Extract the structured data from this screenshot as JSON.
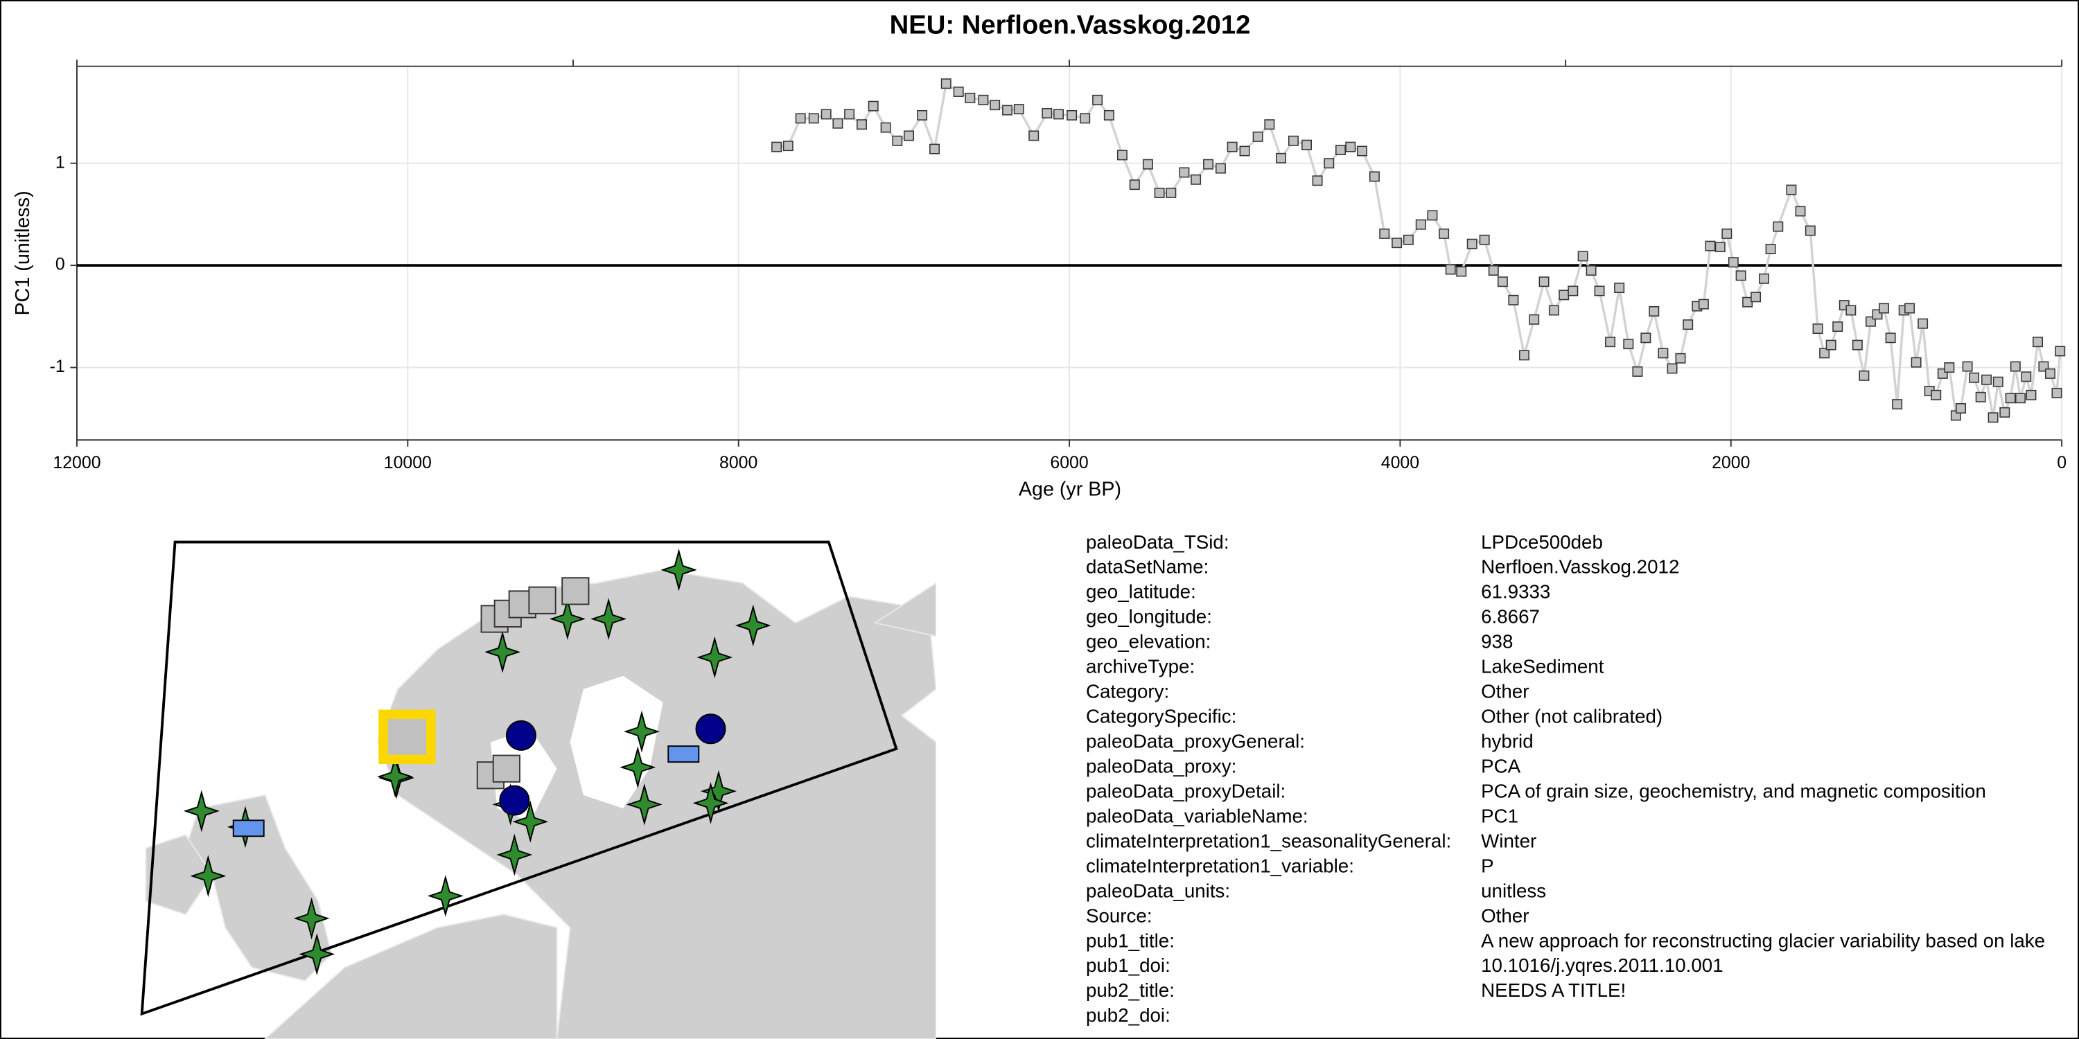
{
  "chart_data": {
    "type": "line",
    "title": "NEU: Nerfloen.Vasskog.2012",
    "x_label": "Age (yr BP)",
    "y_label": "PC1 (unitless)",
    "x": [
      7770,
      7700,
      7625,
      7545,
      7470,
      7400,
      7330,
      7255,
      7185,
      7110,
      7040,
      6970,
      6890,
      6815,
      6745,
      6670,
      6600,
      6520,
      6450,
      6375,
      6305,
      6215,
      6135,
      6065,
      5985,
      5905,
      5830,
      5760,
      5680,
      5605,
      5525,
      5455,
      5385,
      5305,
      5235,
      5160,
      5085,
      5015,
      4940,
      4860,
      4790,
      4720,
      4645,
      4565,
      4500,
      4430,
      4360,
      4300,
      4230,
      4155,
      4095,
      4020,
      3950,
      3875,
      3805,
      3735,
      3695,
      3630,
      3565,
      3490,
      3435,
      3380,
      3315,
      3250,
      3190,
      3130,
      3070,
      3010,
      2955,
      2895,
      2845,
      2795,
      2730,
      2675,
      2620,
      2565,
      2515,
      2465,
      2410,
      2355,
      2305,
      2260,
      2205,
      2165,
      2125,
      2065,
      2025,
      1985,
      1940,
      1900,
      1850,
      1800,
      1760,
      1715,
      1635,
      1580,
      1520,
      1475,
      1435,
      1395,
      1355,
      1315,
      1275,
      1235,
      1195,
      1155,
      1115,
      1075,
      1035,
      995,
      955,
      920,
      880,
      840,
      800,
      760,
      720,
      680,
      640,
      610,
      570,
      530,
      490,
      455,
      415,
      385,
      345,
      310,
      280,
      250,
      215,
      185,
      145,
      110,
      70,
      30,
      10
    ],
    "values": [
      1.16,
      1.17,
      1.44,
      1.44,
      1.48,
      1.39,
      1.48,
      1.38,
      1.56,
      1.35,
      1.22,
      1.27,
      1.47,
      1.14,
      1.78,
      1.7,
      1.64,
      1.62,
      1.57,
      1.52,
      1.53,
      1.27,
      1.49,
      1.48,
      1.47,
      1.44,
      1.62,
      1.47,
      1.08,
      0.79,
      0.99,
      0.71,
      0.71,
      0.91,
      0.84,
      0.99,
      0.95,
      1.16,
      1.12,
      1.26,
      1.38,
      1.05,
      1.22,
      1.18,
      0.83,
      1.0,
      1.13,
      1.16,
      1.12,
      0.87,
      0.31,
      0.22,
      0.25,
      0.4,
      0.49,
      0.31,
      -0.04,
      -0.06,
      0.21,
      0.25,
      -0.05,
      -0.16,
      -0.34,
      -0.88,
      -0.53,
      -0.16,
      -0.44,
      -0.29,
      -0.25,
      0.09,
      -0.05,
      -0.25,
      -0.75,
      -0.22,
      -0.77,
      -1.04,
      -0.71,
      -0.45,
      -0.86,
      -1.01,
      -0.91,
      -0.58,
      -0.4,
      -0.38,
      0.19,
      0.18,
      0.31,
      0.03,
      -0.1,
      -0.36,
      -0.31,
      -0.13,
      0.16,
      0.38,
      0.74,
      0.53,
      0.34,
      -0.62,
      -0.86,
      -0.78,
      -0.6,
      -0.39,
      -0.44,
      -0.78,
      -1.08,
      -0.55,
      -0.48,
      -0.42,
      -0.71,
      -1.36,
      -0.44,
      -0.42,
      -0.95,
      -0.57,
      -1.23,
      -1.27,
      -1.06,
      -1.0,
      -1.47,
      -1.4,
      -0.99,
      -1.1,
      -1.29,
      -1.12,
      -1.49,
      -1.14,
      -1.44,
      -1.3,
      -0.99,
      -1.3,
      -1.09,
      -1.27,
      -0.75,
      -0.99,
      -1.06,
      -1.25,
      -0.84
    ],
    "color": "#d3d3d3",
    "marker_color": "#c0c0c0",
    "xlim": [
      12000,
      0
    ],
    "xticks": [
      12000,
      10000,
      8000,
      6000,
      4000,
      2000,
      0
    ],
    "x2ticks": [
      12000,
      9000,
      6000,
      3000,
      0
    ],
    "ylim": [
      -1.71,
      1.95
    ],
    "yticks": [
      -1,
      0,
      1
    ],
    "reference_line": 0,
    "grid": true
  },
  "metadata": {
    "rows": [
      [
        "paleoData_TSid:",
        "LPDce500deb"
      ],
      [
        "dataSetName:",
        "Nerfloen.Vasskog.2012"
      ],
      [
        "geo_latitude:",
        "61.9333"
      ],
      [
        "geo_longitude:",
        "6.8667"
      ],
      [
        "geo_elevation:",
        "938"
      ],
      [
        "archiveType:",
        "LakeSediment"
      ],
      [
        "Category:",
        "Other"
      ],
      [
        "CategorySpecific:",
        "Other (not calibrated)"
      ],
      [
        "paleoData_proxyGeneral:",
        "hybrid"
      ],
      [
        "paleoData_proxy:",
        "PCA"
      ],
      [
        "paleoData_proxyDetail:",
        "PCA of grain size, geochemistry, and magnetic composition"
      ],
      [
        "paleoData_variableName:",
        "PC1"
      ],
      [
        "climateInterpretation1_seasonalityGeneral:",
        "Winter"
      ],
      [
        "climateInterpretation1_variable:",
        "P"
      ],
      [
        "paleoData_units:",
        "unitless"
      ],
      [
        "Source:",
        "Other"
      ],
      [
        "pub1_title:",
        "A new approach for reconstructing glacier variability based on lake"
      ],
      [
        "pub1_doi:",
        "10.1016/j.yqres.2011.10.001"
      ],
      [
        "pub2_title:",
        "NEEDS A TITLE!"
      ],
      [
        "pub2_doi:"
      ]
    ]
  }
}
